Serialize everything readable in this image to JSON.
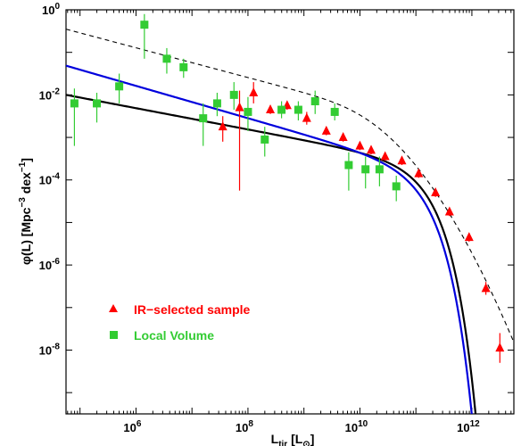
{
  "chart_data": {
    "type": "scatter",
    "title": "",
    "xlabel": "L_tir [L_⊙]",
    "ylabel": "φ(L)  [Mpc^-3 dex^-1]",
    "x_scale": "log",
    "y_scale": "log",
    "xlim_log10": [
      4.75,
      12.75
    ],
    "ylim_log10": [
      -9.5,
      0.0
    ],
    "x_ticks": [
      {
        "exp": 6,
        "text_base": "10",
        "text_exp": "6"
      },
      {
        "exp": 8,
        "text_base": "10",
        "text_exp": "8"
      },
      {
        "exp": 10,
        "text_base": "10",
        "text_exp": "10"
      },
      {
        "exp": 12,
        "text_base": "10",
        "text_exp": "12"
      }
    ],
    "y_ticks": [
      {
        "exp": 0,
        "text_base": "10",
        "text_exp": "0"
      },
      {
        "exp": -2,
        "text_base": "10",
        "text_exp": "-2"
      },
      {
        "exp": -4,
        "text_base": "10",
        "text_exp": "-4"
      },
      {
        "exp": -6,
        "text_base": "10",
        "text_exp": "-6"
      },
      {
        "exp": -8,
        "text_base": "10",
        "text_exp": "-8"
      }
    ],
    "grid": false,
    "legend_position": "lower-left",
    "series": [
      {
        "name": "IR−selected sample",
        "marker": "triangle",
        "color": "#ff0000",
        "points": [
          {
            "log_x": 7.55,
            "log_y": -2.75,
            "err_low": 0.35,
            "err_high": 0.25
          },
          {
            "log_x": 7.85,
            "log_y": -2.3,
            "err_low": 1.95,
            "err_high": 0.4
          },
          {
            "log_x": 8.1,
            "log_y": -1.95,
            "err_low": 0.25,
            "err_high": 0.25
          },
          {
            "log_x": 8.4,
            "log_y": -2.35,
            "err_low": 0.1,
            "err_high": 0.1
          },
          {
            "log_x": 8.7,
            "log_y": -2.25,
            "err_low": 0.1,
            "err_high": 0.1
          },
          {
            "log_x": 9.05,
            "log_y": -2.55,
            "err_low": 0.15,
            "err_high": 0.15
          },
          {
            "log_x": 9.4,
            "log_y": -2.85,
            "err_low": 0.1,
            "err_high": 0.1
          },
          {
            "log_x": 9.7,
            "log_y": -3.0,
            "err_low": 0.1,
            "err_high": 0.1
          },
          {
            "log_x": 10.0,
            "log_y": -3.2,
            "err_low": 0.1,
            "err_high": 0.1
          },
          {
            "log_x": 10.2,
            "log_y": -3.3,
            "err_low": 0.1,
            "err_high": 0.1
          },
          {
            "log_x": 10.45,
            "log_y": -3.45,
            "err_low": 0.1,
            "err_high": 0.1
          },
          {
            "log_x": 10.75,
            "log_y": -3.55,
            "err_low": 0.1,
            "err_high": 0.1
          },
          {
            "log_x": 11.05,
            "log_y": -3.85,
            "err_low": 0.1,
            "err_high": 0.1
          },
          {
            "log_x": 11.35,
            "log_y": -4.3,
            "err_low": 0.1,
            "err_high": 0.1
          },
          {
            "log_x": 11.6,
            "log_y": -4.75,
            "err_low": 0.1,
            "err_high": 0.1
          },
          {
            "log_x": 11.95,
            "log_y": -5.35,
            "err_low": 0.1,
            "err_high": 0.1
          },
          {
            "log_x": 12.25,
            "log_y": -6.55,
            "err_low": 0.15,
            "err_high": 0.15
          },
          {
            "log_x": 12.5,
            "log_y": -7.95,
            "err_low": 0.35,
            "err_high": 0.35
          }
        ]
      },
      {
        "name": "Local Volume",
        "marker": "square",
        "color": "#33cc33",
        "points": [
          {
            "log_x": 4.9,
            "log_y": -2.2,
            "err_low": 1.0,
            "err_high": 0.35
          },
          {
            "log_x": 5.3,
            "log_y": -2.2,
            "err_low": 0.45,
            "err_high": 0.25
          },
          {
            "log_x": 5.7,
            "log_y": -1.8,
            "err_low": 0.4,
            "err_high": 0.3
          },
          {
            "log_x": 6.15,
            "log_y": -0.35,
            "err_low": 0.8,
            "err_high": 0.25
          },
          {
            "log_x": 6.55,
            "log_y": -1.15,
            "err_low": 0.35,
            "err_high": 0.25
          },
          {
            "log_x": 6.85,
            "log_y": -1.35,
            "err_low": 0.25,
            "err_high": 0.2
          },
          {
            "log_x": 7.2,
            "log_y": -2.55,
            "err_low": 0.65,
            "err_high": 0.35
          },
          {
            "log_x": 7.45,
            "log_y": -2.2,
            "err_low": 0.3,
            "err_high": 0.25
          },
          {
            "log_x": 7.75,
            "log_y": -2.0,
            "err_low": 0.35,
            "err_high": 0.3
          },
          {
            "log_x": 8.0,
            "log_y": -2.4,
            "err_low": 0.45,
            "err_high": 0.35
          },
          {
            "log_x": 8.3,
            "log_y": -3.05,
            "err_low": 0.4,
            "err_high": 0.3
          },
          {
            "log_x": 8.6,
            "log_y": -2.35,
            "err_low": 0.2,
            "err_high": 0.2
          },
          {
            "log_x": 8.9,
            "log_y": -2.35,
            "err_low": 0.25,
            "err_high": 0.2
          },
          {
            "log_x": 9.2,
            "log_y": -2.15,
            "err_low": 0.3,
            "err_high": 0.25
          },
          {
            "log_x": 9.55,
            "log_y": -2.4,
            "err_low": 0.2,
            "err_high": 0.2
          },
          {
            "log_x": 9.8,
            "log_y": -3.65,
            "err_low": 0.6,
            "err_high": 0.3
          },
          {
            "log_x": 10.1,
            "log_y": -3.75,
            "err_low": 0.45,
            "err_high": 0.3
          },
          {
            "log_x": 10.35,
            "log_y": -3.75,
            "err_low": 0.4,
            "err_high": 0.3
          },
          {
            "log_x": 10.65,
            "log_y": -4.15,
            "err_low": 0.35,
            "err_high": 0.25
          }
        ]
      },
      {
        "name": "",
        "type": "line",
        "style": "solid",
        "color": "#000000",
        "width": 2.2,
        "curve": "schechter",
        "params": {
          "log_phi_star": -3.55,
          "log_L_star": 10.95,
          "alpha": -1.25
        }
      },
      {
        "name": "",
        "type": "line",
        "style": "solid",
        "color": "#0000dd",
        "width": 2.2,
        "curve": "schechter",
        "params": {
          "log_phi_star": -3.65,
          "log_L_star": 10.9,
          "alpha": -1.38
        }
      },
      {
        "name": "",
        "type": "line",
        "style": "dashed",
        "color": "#000000",
        "width": 1.1,
        "curve": "double_power_saunders",
        "params": {
          "log_phi_star": -2.1,
          "log_L_star": 9.45,
          "alpha": -1.35,
          "sigma": 0.72
        }
      }
    ]
  }
}
